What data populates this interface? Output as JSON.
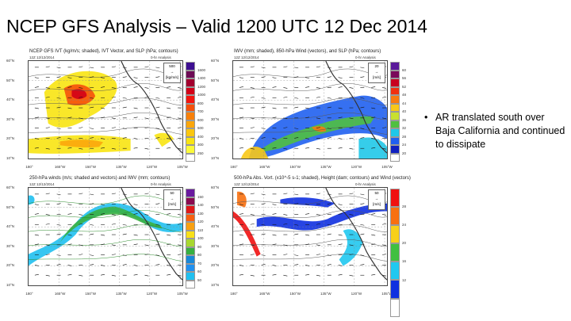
{
  "slide": {
    "title": "NCEP GFS Analysis – Valid 1200 UTC 12 Dec 2014",
    "bullet": "AR translated south over Baja California and continued to dissipate"
  },
  "axes": {
    "lat_labels": [
      "60°N",
      "50°N",
      "40°N",
      "30°N",
      "20°N",
      "10°N"
    ],
    "lon_labels": [
      "180°",
      "165°W",
      "150°W",
      "135°W",
      "120°W",
      "105°W"
    ]
  },
  "panels": [
    {
      "title": "NCEP GFS IVT (kg/m/s; shaded), IVT Vector, and SLP (hPa; contours)",
      "date": "12Z 12/12/2014",
      "analysis": "0-hr Analysis",
      "ref_value": "500",
      "units": "[kg/m/s]",
      "levels": [
        "1600",
        "1400",
        "1200",
        "1000",
        "800",
        "700",
        "600",
        "500",
        "400",
        "300",
        "250"
      ],
      "colors": [
        "#3d0f91",
        "#6e0b55",
        "#a3002e",
        "#d30018",
        "#f3140f",
        "#f5500b",
        "#f8800a",
        "#fba60b",
        "#fbc70f",
        "#f8e412",
        "#fbfa3a",
        "#ffffff"
      ]
    },
    {
      "title": "IWV (mm; shaded), 850-hPa Wind (vectors), and SLP (hPa; contours)",
      "date": "12Z 12/12/2014",
      "analysis": "0-hr Analysis",
      "ref_value": "20",
      "units": "[m/s]",
      "levels": [
        "60",
        "56",
        "52",
        "48",
        "44",
        "40",
        "36",
        "32",
        "28",
        "24",
        "20"
      ],
      "colors": [
        "#5a1a9a",
        "#7a0a5a",
        "#c80020",
        "#f03010",
        "#f87a10",
        "#f8c818",
        "#c8e030",
        "#50c040",
        "#20c8e8",
        "#2060f0",
        "#1020c0",
        "#ffffff"
      ]
    },
    {
      "title": "250-hPa winds (m/s; shaded and vectors) and IWV (mm; contours)",
      "date": "12Z 12/12/2014",
      "analysis": "0-hr Analysis",
      "ref_value": "50",
      "units": "[m/s]",
      "levels": [
        "150",
        "140",
        "130",
        "120",
        "110",
        "100",
        "90",
        "80",
        "70",
        "60",
        "50"
      ],
      "colors": [
        "#6a1aa0",
        "#8a0a50",
        "#e01818",
        "#f86010",
        "#f8a010",
        "#f8e018",
        "#a8d830",
        "#38b040",
        "#1888d8",
        "#2090f0",
        "#20c0f0",
        "#ffffff"
      ]
    },
    {
      "title": "500-hPa Abs. Vort. (x10^-5 s-1; shaded), Height (dam; contours) and Wind (vectors)",
      "date": "12Z 12/12/2014",
      "analysis": "0-hr Analysis",
      "ref_value": "50",
      "units": "[m/s]",
      "levels": [
        "28",
        "24",
        "20",
        "16",
        "12"
      ],
      "colors": [
        "#f01010",
        "#f87010",
        "#f8d018",
        "#40c040",
        "#20c8f0",
        "#1030e0",
        "#ffffff"
      ]
    }
  ]
}
